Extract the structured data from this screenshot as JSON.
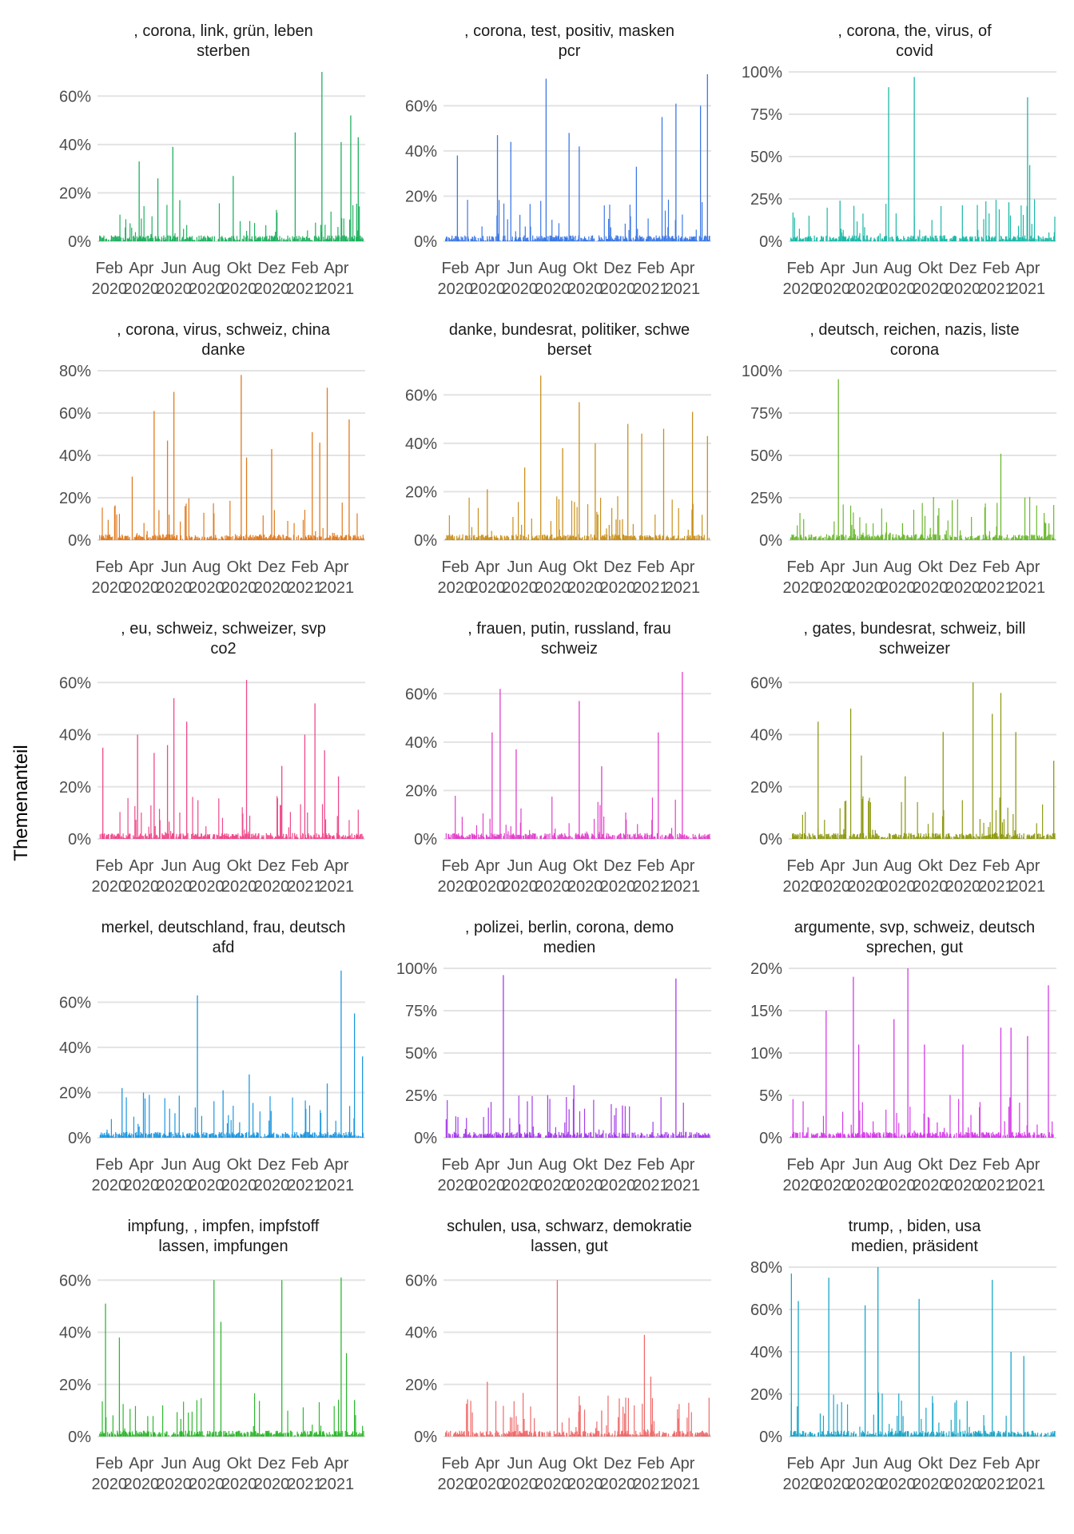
{
  "figure": {
    "ylabel": "Themenanteil",
    "x_ticks": [
      {
        "month": "Feb",
        "year": "2020"
      },
      {
        "month": "Apr",
        "year": "2020"
      },
      {
        "month": "Jun",
        "year": "2020"
      },
      {
        "month": "Aug",
        "year": "2020"
      },
      {
        "month": "Okt",
        "year": "2020"
      },
      {
        "month": "Dez",
        "year": "2020"
      },
      {
        "month": "Feb",
        "year": "2021"
      },
      {
        "month": "Apr",
        "year": "2021"
      }
    ]
  },
  "chart_data": [
    {
      "type": "bar",
      "title_line1": ", corona, link, grün, leben",
      "title_line2": "sterben",
      "color": "#1fb05f",
      "ylim": [
        0,
        0.7
      ],
      "yticks": [
        0,
        0.2,
        0.4,
        0.6
      ],
      "ytick_labels": [
        "0%",
        "20%",
        "40%",
        "60%"
      ],
      "xlim": [
        "2020-01-10",
        "2021-05-25"
      ],
      "peaks": [
        [
          "2020-03-28",
          0.33
        ],
        [
          "2020-05-02",
          0.26
        ],
        [
          "2020-05-30",
          0.39
        ],
        [
          "2020-06-12",
          0.17
        ],
        [
          "2020-09-20",
          0.27
        ],
        [
          "2021-01-14",
          0.45
        ],
        [
          "2021-03-05",
          0.7
        ],
        [
          "2021-04-10",
          0.41
        ],
        [
          "2021-04-28",
          0.52
        ],
        [
          "2021-05-12",
          0.43
        ]
      ]
    },
    {
      "type": "bar",
      "title_line1": ", corona, test, positiv, masken",
      "title_line2": "pcr",
      "color": "#3c78e6",
      "ylim": [
        0,
        0.75
      ],
      "yticks": [
        0,
        0.2,
        0.4,
        0.6
      ],
      "ytick_labels": [
        "0%",
        "20%",
        "40%",
        "60%"
      ],
      "xlim": [
        "2020-01-10",
        "2021-05-25"
      ],
      "peaks": [
        [
          "2020-02-05",
          0.38
        ],
        [
          "2020-04-20",
          0.47
        ],
        [
          "2020-05-15",
          0.44
        ],
        [
          "2020-07-20",
          0.72
        ],
        [
          "2020-09-01",
          0.48
        ],
        [
          "2020-09-20",
          0.42
        ],
        [
          "2021-01-05",
          0.33
        ],
        [
          "2021-02-22",
          0.55
        ],
        [
          "2021-03-20",
          0.61
        ],
        [
          "2021-05-05",
          0.6
        ],
        [
          "2021-05-18",
          0.74
        ]
      ]
    },
    {
      "type": "bar",
      "title_line1": ", corona, the, virus, of",
      "title_line2": "covid",
      "color": "#19b8a6",
      "ylim": [
        0,
        1.0
      ],
      "yticks": [
        0,
        0.25,
        0.5,
        0.75,
        1.0
      ],
      "ytick_labels": [
        "0%",
        "25%",
        "50%",
        "75%",
        "100%"
      ],
      "xlim": [
        "2020-01-10",
        "2021-05-25"
      ],
      "peaks": [
        [
          "2020-04-15",
          0.24
        ],
        [
          "2020-07-15",
          0.91
        ],
        [
          "2020-09-01",
          0.97
        ],
        [
          "2021-02-25",
          0.23
        ],
        [
          "2021-04-01",
          0.85
        ],
        [
          "2021-04-05",
          0.45
        ]
      ]
    },
    {
      "type": "bar",
      "title_line1": ", corona, virus, schweiz, china",
      "title_line2": "danke",
      "color": "#e07a1e",
      "ylim": [
        0,
        0.8
      ],
      "yticks": [
        0,
        0.2,
        0.4,
        0.6,
        0.8
      ],
      "ytick_labels": [
        "0%",
        "20%",
        "40%",
        "60%",
        "80%"
      ],
      "xlim": [
        "2020-01-10",
        "2021-05-25"
      ],
      "peaks": [
        [
          "2020-03-15",
          0.3
        ],
        [
          "2020-04-25",
          0.61
        ],
        [
          "2020-05-20",
          0.47
        ],
        [
          "2020-06-01",
          0.7
        ],
        [
          "2020-10-05",
          0.78
        ],
        [
          "2020-10-15",
          0.39
        ],
        [
          "2020-12-01",
          0.43
        ],
        [
          "2021-02-15",
          0.51
        ],
        [
          "2021-03-01",
          0.46
        ],
        [
          "2021-03-15",
          0.72
        ],
        [
          "2021-04-25",
          0.57
        ]
      ]
    },
    {
      "type": "bar",
      "title_line1": "danke, bundesrat, politiker, schwe",
      "title_line2": "berset",
      "color": "#c9901c",
      "ylim": [
        0,
        0.7
      ],
      "yticks": [
        0,
        0.2,
        0.4,
        0.6
      ],
      "ytick_labels": [
        "0%",
        "20%",
        "40%",
        "60%"
      ],
      "xlim": [
        "2020-01-10",
        "2021-05-25"
      ],
      "peaks": [
        [
          "2020-04-01",
          0.21
        ],
        [
          "2020-06-10",
          0.3
        ],
        [
          "2020-07-10",
          0.68
        ],
        [
          "2020-08-20",
          0.38
        ],
        [
          "2020-09-20",
          0.57
        ],
        [
          "2020-10-20",
          0.4
        ],
        [
          "2020-12-20",
          0.48
        ],
        [
          "2021-01-15",
          0.44
        ],
        [
          "2021-02-25",
          0.46
        ],
        [
          "2021-04-20",
          0.53
        ],
        [
          "2021-05-18",
          0.43
        ]
      ]
    },
    {
      "type": "bar",
      "title_line1": ", deutsch, reichen, nazis, liste",
      "title_line2": "corona",
      "color": "#6bb82e",
      "ylim": [
        0,
        1.0
      ],
      "yticks": [
        0,
        0.25,
        0.5,
        0.75,
        1.0
      ],
      "ytick_labels": [
        "0%",
        "25%",
        "50%",
        "75%",
        "100%"
      ],
      "xlim": [
        "2020-01-10",
        "2021-05-25"
      ],
      "peaks": [
        [
          "2020-04-12",
          0.95
        ],
        [
          "2020-08-10",
          0.1
        ],
        [
          "2021-02-10",
          0.51
        ],
        [
          "2021-05-05",
          0.1
        ]
      ]
    },
    {
      "type": "bar",
      "title_line1": ", eu, schweiz, schweizer, svp",
      "title_line2": "co2",
      "color": "#f0488a",
      "ylim": [
        0,
        0.65
      ],
      "yticks": [
        0,
        0.2,
        0.4,
        0.6
      ],
      "ytick_labels": [
        "0%",
        "20%",
        "40%",
        "60%"
      ],
      "xlim": [
        "2020-01-10",
        "2021-05-25"
      ],
      "peaks": [
        [
          "2020-01-20",
          0.35
        ],
        [
          "2020-03-25",
          0.4
        ],
        [
          "2020-04-25",
          0.33
        ],
        [
          "2020-05-20",
          0.36
        ],
        [
          "2020-06-01",
          0.54
        ],
        [
          "2020-06-25",
          0.45
        ],
        [
          "2020-10-15",
          0.61
        ],
        [
          "2020-12-20",
          0.28
        ],
        [
          "2021-02-01",
          0.4
        ],
        [
          "2021-02-20",
          0.52
        ],
        [
          "2021-03-10",
          0.34
        ],
        [
          "2021-04-05",
          0.24
        ]
      ]
    },
    {
      "type": "bar",
      "title_line1": ", frauen, putin, russland, frau",
      "title_line2": "schweiz",
      "color": "#e23fcb",
      "ylim": [
        0,
        0.7
      ],
      "yticks": [
        0,
        0.2,
        0.4,
        0.6
      ],
      "ytick_labels": [
        "0%",
        "20%",
        "40%",
        "60%"
      ],
      "xlim": [
        "2020-01-10",
        "2021-05-25"
      ],
      "peaks": [
        [
          "2020-04-10",
          0.44
        ],
        [
          "2020-04-25",
          0.62
        ],
        [
          "2020-05-25",
          0.37
        ],
        [
          "2020-09-20",
          0.57
        ],
        [
          "2020-11-01",
          0.3
        ],
        [
          "2021-02-15",
          0.44
        ],
        [
          "2021-04-01",
          0.69
        ]
      ]
    },
    {
      "type": "bar",
      "title_line1": ", gates, bundesrat, schweiz, bill",
      "title_line2": "schweizer",
      "color": "#8f9a13",
      "ylim": [
        0,
        0.65
      ],
      "yticks": [
        0,
        0.2,
        0.4,
        0.6
      ],
      "ytick_labels": [
        "0%",
        "20%",
        "40%",
        "60%"
      ],
      "xlim": [
        "2020-01-10",
        "2021-05-25"
      ],
      "peaks": [
        [
          "2020-03-05",
          0.45
        ],
        [
          "2020-05-05",
          0.5
        ],
        [
          "2020-05-25",
          0.32
        ],
        [
          "2020-08-15",
          0.24
        ],
        [
          "2020-10-25",
          0.41
        ],
        [
          "2020-12-20",
          0.6
        ],
        [
          "2021-01-25",
          0.48
        ],
        [
          "2021-02-10",
          0.56
        ],
        [
          "2021-03-10",
          0.41
        ],
        [
          "2021-05-20",
          0.3
        ]
      ]
    },
    {
      "type": "bar",
      "title_line1": "merkel, deutschland, frau, deutsch",
      "title_line2": "afd",
      "color": "#1e97e0",
      "ylim": [
        0,
        0.75
      ],
      "yticks": [
        0,
        0.2,
        0.4,
        0.6
      ],
      "ytick_labels": [
        "0%",
        "20%",
        "40%",
        "60%"
      ],
      "xlim": [
        "2020-01-10",
        "2021-05-25"
      ],
      "peaks": [
        [
          "2020-02-25",
          0.22
        ],
        [
          "2020-04-05",
          0.2
        ],
        [
          "2020-07-15",
          0.63
        ],
        [
          "2020-09-01",
          0.21
        ],
        [
          "2020-10-20",
          0.28
        ],
        [
          "2021-03-15",
          0.24
        ],
        [
          "2021-04-10",
          0.74
        ],
        [
          "2021-05-05",
          0.55
        ],
        [
          "2021-05-20",
          0.36
        ]
      ]
    },
    {
      "type": "bar",
      "title_line1": ", polizei, berlin, corona, demo",
      "title_line2": "medien",
      "color": "#a43be8",
      "ylim": [
        0,
        1.0
      ],
      "yticks": [
        0,
        0.25,
        0.5,
        0.75,
        1.0
      ],
      "ytick_labels": [
        "0%",
        "25%",
        "50%",
        "75%",
        "100%"
      ],
      "xlim": [
        "2020-01-10",
        "2021-05-25"
      ],
      "peaks": [
        [
          "2020-05-01",
          0.96
        ],
        [
          "2020-09-10",
          0.31
        ],
        [
          "2020-12-10",
          0.19
        ],
        [
          "2021-03-20",
          0.94
        ]
      ]
    },
    {
      "type": "bar",
      "title_line1": "argumente, svp, schweiz, deutsch",
      "title_line2": "sprechen, gut",
      "color": "#d53be8",
      "ylim": [
        0,
        0.2
      ],
      "yticks": [
        0,
        0.05,
        0.1,
        0.15,
        0.2
      ],
      "ytick_labels": [
        "0%",
        "5%",
        "10%",
        "15%",
        "20%"
      ],
      "xlim": [
        "2020-01-10",
        "2021-05-25"
      ],
      "peaks": [
        [
          "2020-03-20",
          0.15
        ],
        [
          "2020-05-10",
          0.19
        ],
        [
          "2020-05-20",
          0.11
        ],
        [
          "2020-07-25",
          0.14
        ],
        [
          "2020-08-20",
          0.2
        ],
        [
          "2020-09-20",
          0.11
        ],
        [
          "2020-12-01",
          0.11
        ],
        [
          "2021-02-10",
          0.13
        ],
        [
          "2021-03-01",
          0.13
        ],
        [
          "2021-04-01",
          0.12
        ],
        [
          "2021-05-10",
          0.18
        ]
      ]
    },
    {
      "type": "bar",
      "title_line1": "impfung, , impfen, impfstoff",
      "title_line2": "lassen, impfungen",
      "color": "#2fb82f",
      "ylim": [
        0,
        0.65
      ],
      "yticks": [
        0,
        0.2,
        0.4,
        0.6
      ],
      "ytick_labels": [
        "0%",
        "20%",
        "40%",
        "60%"
      ],
      "xlim": [
        "2020-01-10",
        "2021-05-25"
      ],
      "peaks": [
        [
          "2020-01-25",
          0.51
        ],
        [
          "2020-02-20",
          0.38
        ],
        [
          "2020-08-15",
          0.6
        ],
        [
          "2020-08-28",
          0.44
        ],
        [
          "2020-12-20",
          0.6
        ],
        [
          "2021-04-10",
          0.61
        ],
        [
          "2021-04-20",
          0.32
        ],
        [
          "2021-05-05",
          0.14
        ]
      ]
    },
    {
      "type": "bar",
      "title_line1": "schulen, usa, schwarz, demokratie",
      "title_line2": "lassen, gut",
      "color": "#f06a6a",
      "ylim": [
        0,
        0.65
      ],
      "yticks": [
        0,
        0.2,
        0.4,
        0.6
      ],
      "ytick_labels": [
        "0%",
        "20%",
        "40%",
        "60%"
      ],
      "xlim": [
        "2020-01-10",
        "2021-05-25"
      ],
      "peaks": [
        [
          "2020-04-01",
          0.21
        ],
        [
          "2020-08-10",
          0.6
        ],
        [
          "2020-11-01",
          0.1
        ],
        [
          "2021-01-20",
          0.39
        ],
        [
          "2021-02-01",
          0.23
        ]
      ]
    },
    {
      "type": "bar",
      "title_line1": "trump, , biden, usa",
      "title_line2": "medien, präsident",
      "color": "#19a6c9",
      "ylim": [
        0,
        0.8
      ],
      "yticks": [
        0,
        0.2,
        0.4,
        0.6,
        0.8
      ],
      "ytick_labels": [
        "0%",
        "20%",
        "40%",
        "60%",
        "80%"
      ],
      "xlim": [
        "2020-01-10",
        "2021-05-25"
      ],
      "peaks": [
        [
          "2020-01-15",
          0.77
        ],
        [
          "2020-01-28",
          0.64
        ],
        [
          "2020-03-25",
          0.75
        ],
        [
          "2020-06-01",
          0.62
        ],
        [
          "2020-06-25",
          0.8
        ],
        [
          "2020-09-10",
          0.65
        ],
        [
          "2021-01-25",
          0.74
        ],
        [
          "2021-03-01",
          0.4
        ],
        [
          "2021-03-25",
          0.38
        ]
      ]
    }
  ]
}
